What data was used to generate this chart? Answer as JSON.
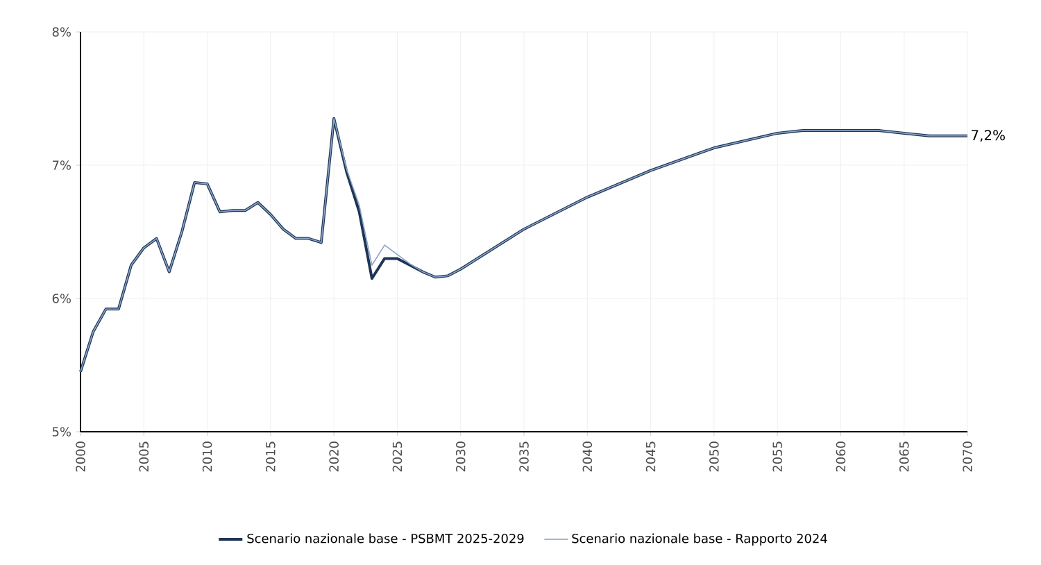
{
  "chart_data": {
    "type": "line",
    "x": [
      2000,
      2001,
      2002,
      2003,
      2004,
      2005,
      2006,
      2007,
      2008,
      2009,
      2010,
      2011,
      2012,
      2013,
      2014,
      2015,
      2016,
      2017,
      2018,
      2019,
      2020,
      2021,
      2022,
      2023,
      2024,
      2025,
      2026,
      2027,
      2028,
      2029,
      2030,
      2035,
      2040,
      2045,
      2050,
      2055,
      2057,
      2063,
      2065,
      2067,
      2070
    ],
    "series": [
      {
        "name": "Scenario nazionale base - PSBMT 2025-2029",
        "color": "#1f3556",
        "values": [
          5.45,
          5.75,
          5.92,
          5.92,
          6.25,
          6.38,
          6.45,
          6.2,
          6.5,
          6.87,
          6.86,
          6.65,
          6.66,
          6.66,
          6.72,
          6.63,
          6.52,
          6.45,
          6.45,
          6.42,
          7.35,
          6.95,
          6.65,
          6.15,
          6.3,
          6.3,
          6.25,
          6.2,
          6.16,
          6.17,
          6.22,
          6.52,
          6.76,
          6.96,
          7.13,
          7.24,
          7.26,
          7.26,
          7.24,
          7.22,
          7.22
        ]
      },
      {
        "name": "Scenario nazionale base - Rapporto 2024",
        "color": "#8aa4c8",
        "values": [
          5.45,
          5.75,
          5.92,
          5.92,
          6.25,
          6.38,
          6.45,
          6.2,
          6.5,
          6.87,
          6.86,
          6.65,
          6.66,
          6.66,
          6.72,
          6.63,
          6.52,
          6.45,
          6.45,
          6.42,
          7.35,
          6.97,
          6.7,
          6.25,
          6.4,
          6.33,
          6.26,
          6.2,
          6.16,
          6.17,
          6.22,
          6.52,
          6.76,
          6.96,
          7.13,
          7.24,
          7.26,
          7.26,
          7.24,
          7.22,
          7.22
        ]
      }
    ],
    "xlim": [
      2000,
      2070
    ],
    "xticks": [
      2000,
      2005,
      2010,
      2015,
      2020,
      2025,
      2030,
      2035,
      2040,
      2045,
      2050,
      2055,
      2060,
      2065,
      2070
    ],
    "ylim": [
      5,
      8
    ],
    "yticks": [
      {
        "value": 5,
        "label": "5%"
      },
      {
        "value": 6,
        "label": "6%"
      },
      {
        "value": 7,
        "label": "7%"
      },
      {
        "value": 8,
        "label": "8%"
      }
    ],
    "grid": true,
    "legend": "bottom",
    "annotations": [
      {
        "text": "7,2%",
        "x": 2070,
        "y": 7.22
      }
    ]
  }
}
